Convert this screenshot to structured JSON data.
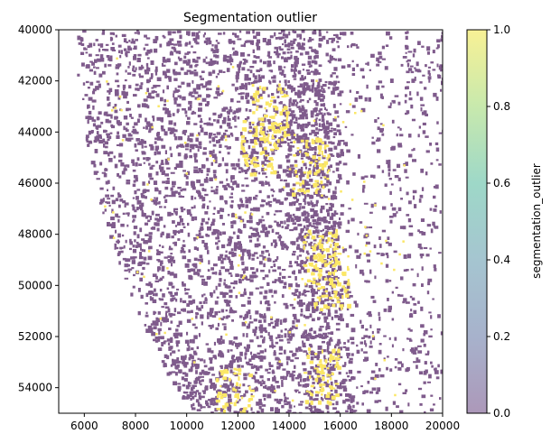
{
  "chart_data": {
    "type": "scatter",
    "title": "Segmentation outlier",
    "xlabel": "",
    "ylabel": "",
    "xlim": [
      5000,
      20000
    ],
    "ylim": [
      55000,
      40000
    ],
    "y_inverted": true,
    "xticks": [
      6000,
      8000,
      10000,
      12000,
      14000,
      16000,
      18000,
      20000
    ],
    "yticks": [
      40000,
      42000,
      44000,
      46000,
      48000,
      50000,
      52000,
      54000
    ],
    "grid": false,
    "colorbar": {
      "label": "segmentation_outlier",
      "range": [
        0.0,
        1.0
      ],
      "ticks": [
        "0.0",
        "0.2",
        "0.4",
        "0.6",
        "0.8",
        "1.0"
      ],
      "colormap": "viridis",
      "alpha": 0.5
    },
    "colors": {
      "value_0": "#7f5b8c",
      "value_1": "#fbe766"
    },
    "series": [
      {
        "value": 0,
        "description_regions": [
          {
            "x": [
              5500,
              14000
            ],
            "y": [
              40000,
              55000
            ]
          },
          {
            "x": [
              13600,
              16200
            ],
            "y": [
              40200,
              55000
            ]
          },
          {
            "x": [
              15800,
              20000
            ],
            "y": [
              40000,
              55000
            ]
          }
        ]
      },
      {
        "value": 1,
        "clusters": [
          {
            "x": 14800,
            "y": 45300
          },
          {
            "x": 15200,
            "y": 48800
          },
          {
            "x": 15600,
            "y": 49800
          },
          {
            "x": 15200,
            "y": 53500
          },
          {
            "x": 11800,
            "y": 54300
          },
          {
            "x": 12800,
            "y": 44500
          },
          {
            "x": 13200,
            "y": 43200
          }
        ]
      }
    ]
  }
}
